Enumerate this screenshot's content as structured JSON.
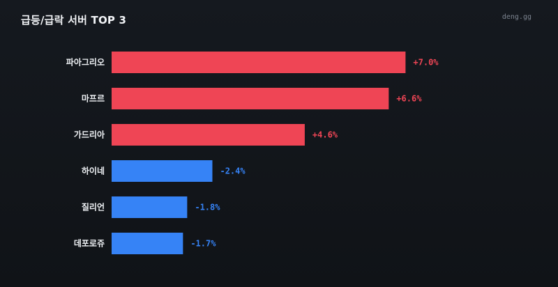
{
  "header": {
    "title": "급등/급락 서버 TOP 3",
    "brand": "deng.gg"
  },
  "colors": {
    "positive": "#ef4555",
    "negative": "#3683f6"
  },
  "chart_data": {
    "type": "bar",
    "orientation": "horizontal",
    "title": "급등/급락 서버 TOP 3",
    "categories": [
      "파아그리오",
      "마프르",
      "가드리아",
      "하이네",
      "질리언",
      "데포로쥬"
    ],
    "values": [
      7.0,
      6.6,
      4.6,
      -2.4,
      -1.8,
      -1.7
    ],
    "labels": [
      "+7.0%",
      "+6.6%",
      "+4.6%",
      "-2.4%",
      "-1.8%",
      "-1.7%"
    ],
    "xlabel": "",
    "ylabel": "",
    "grid": false,
    "legend": "none"
  }
}
